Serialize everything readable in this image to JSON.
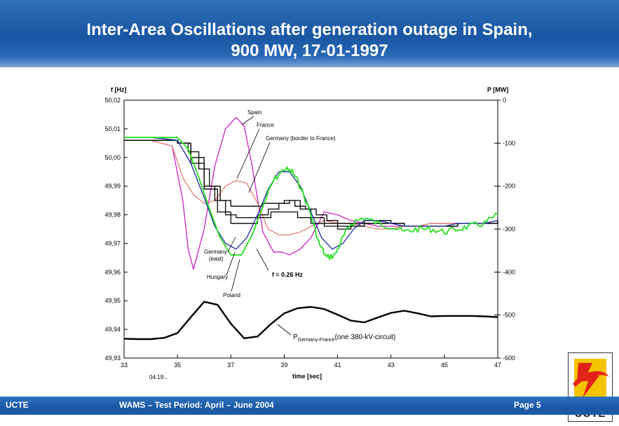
{
  "title_line1": "Inter-Area Oscillations after generation outage in Spain,",
  "title_line2": "900 MW, 17-01-1997",
  "footer": {
    "left": "UCTE",
    "middle": "WAMS – Test Period: April – June 2004",
    "right": "Page 5"
  },
  "logo": {
    "text": "UCTE",
    "icon": "ucte-lightning-logo-icon",
    "colors": {
      "red": "#e2231a",
      "yellow": "#f5c400"
    }
  },
  "chart_data": {
    "type": "line",
    "xlabel": "time [sec]",
    "x_sublabel": "04:19:..",
    "ylabel_left": "f [Hz]",
    "ylabel_right": "P [MW]",
    "xlim": [
      33,
      47
    ],
    "ylim_left": [
      49.93,
      50.02
    ],
    "ylim_right": [
      -600,
      0
    ],
    "x_ticks": [
      "33",
      "35",
      "37",
      "39",
      "41",
      "43",
      "45",
      "47"
    ],
    "y_ticks_left": [
      "50,02",
      "50,01",
      "50,00",
      "49,99",
      "49,98",
      "49,97",
      "49,96",
      "49,95",
      "49,94",
      "49,93"
    ],
    "y_ticks_right": [
      "0",
      "-100",
      "-200",
      "-300",
      "-400",
      "-500",
      "-600"
    ],
    "annotations": {
      "spain": "Spain",
      "france": "France",
      "germany_border": "Germany (border to France)",
      "germany_east_1": "Germany",
      "germany_east_2": "(east)",
      "hungary": "Hungary",
      "poland": "Poland",
      "freq": "f ≈ 0.26 Hz",
      "power_main": "P",
      "power_sub": "Germany-France",
      "power_suffix": "(one 380-kV-circuit)"
    },
    "series": [
      {
        "color": "#d020c8",
        "axis": "left",
        "x": [
          33,
          34,
          34.8,
          35.2,
          35.4,
          35.6,
          36,
          36.4,
          36.8,
          37.2,
          37.5,
          37.8,
          38.2,
          38.6,
          38.9,
          39.2,
          39.6,
          40,
          40.5,
          41,
          41.5,
          42,
          42.5,
          43,
          43.5,
          44,
          44.5,
          45,
          45.5,
          46,
          46.5,
          47
        ],
        "y": [
          50.006,
          50.006,
          50.004,
          49.985,
          49.968,
          49.961,
          49.975,
          49.997,
          50.01,
          50.014,
          50.011,
          49.997,
          49.974,
          49.967,
          49.967,
          49.966,
          49.968,
          49.972,
          49.981,
          49.98,
          49.978,
          49.977,
          49.976,
          49.976,
          49.976,
          49.976,
          49.977,
          49.977,
          49.977,
          49.977,
          49.977,
          49.978
        ]
      },
      {
        "color": "#e08070",
        "axis": "left",
        "x": [
          33,
          34,
          34.8,
          35.2,
          35.6,
          36,
          36.4,
          36.8,
          37.2,
          37.6,
          38,
          38.4,
          38.8,
          39.2,
          39.6,
          40,
          40.5,
          41,
          41.5,
          42,
          42.5,
          43,
          43.5,
          44,
          44.5,
          45,
          45.5,
          46,
          46.5,
          47
        ],
        "y": [
          50.006,
          50.006,
          50.004,
          49.993,
          49.987,
          49.984,
          49.985,
          49.99,
          49.992,
          49.991,
          49.984,
          49.975,
          49.973,
          49.973,
          49.974,
          49.976,
          49.978,
          49.977,
          49.977,
          49.976,
          49.975,
          49.975,
          49.976,
          49.976,
          49.977,
          49.977,
          49.977,
          49.977,
          49.977,
          49.978
        ]
      },
      {
        "color": "#000000",
        "axis": "left",
        "x": [
          33,
          34,
          35,
          35.4,
          35.8,
          36.2,
          36.6,
          37,
          37.4,
          37.8,
          38.2,
          38.6,
          39,
          39.4,
          39.8,
          40.2,
          40.6,
          41,
          41.5,
          42,
          42.5,
          43,
          43.5,
          44,
          44.5,
          45,
          45.5,
          46,
          46.5,
          47
        ],
        "y": [
          50.006,
          50.006,
          50.005,
          50.002,
          49.996,
          49.99,
          49.985,
          49.983,
          49.983,
          49.983,
          49.984,
          49.984,
          49.985,
          49.983,
          49.982,
          49.98,
          49.978,
          49.977,
          49.976,
          49.977,
          49.977,
          49.977,
          49.976,
          49.976,
          49.976,
          49.976,
          49.977,
          49.977,
          49.977,
          49.978
        ]
      },
      {
        "color": "#000000",
        "axis": "left",
        "x": [
          33,
          34,
          35,
          35.5,
          36,
          36.4,
          36.8,
          37.2,
          37.6,
          38,
          38.4,
          38.8,
          39.2,
          39.6,
          40,
          40.5,
          41,
          41.5,
          42,
          42.5,
          43,
          43.5,
          44,
          44.5,
          45,
          45.5,
          46,
          46.5,
          47
        ],
        "y": [
          50.006,
          50.006,
          50.005,
          50.0,
          49.99,
          49.985,
          49.98,
          49.979,
          49.979,
          49.98,
          49.982,
          49.984,
          49.985,
          49.982,
          49.979,
          49.977,
          49.976,
          49.977,
          49.978,
          49.978,
          49.977,
          49.976,
          49.976,
          49.976,
          49.976,
          49.977,
          49.977,
          49.977,
          49.978
        ]
      },
      {
        "color": "#000000",
        "axis": "left",
        "x": [
          33,
          34,
          35,
          35.5,
          36,
          36.5,
          37,
          37.5,
          38,
          38.5,
          39,
          39.5,
          40,
          40.5,
          41,
          41.5,
          42,
          42.5,
          43,
          43.5,
          44,
          44.5,
          45,
          45.5,
          46,
          46.5,
          47
        ],
        "y": [
          50.006,
          50.006,
          50.005,
          49.998,
          49.989,
          49.981,
          49.977,
          49.977,
          49.979,
          49.981,
          49.981,
          49.979,
          49.977,
          49.976,
          49.975,
          49.976,
          49.977,
          49.977,
          49.977,
          49.976,
          49.976,
          49.976,
          49.976,
          49.977,
          49.977,
          49.977,
          49.978
        ]
      },
      {
        "color": "#1c2aa0",
        "axis": "left",
        "x": [
          33,
          34,
          35,
          35.5,
          36,
          36.4,
          36.8,
          37.2,
          37.6,
          38,
          38.4,
          38.8,
          39.2,
          39.6,
          40,
          40.4,
          40.8,
          41.2,
          41.6,
          42,
          42.5,
          43,
          43.5,
          44,
          44.5,
          45,
          45.5,
          46,
          46.5,
          47
        ],
        "y": [
          50.007,
          50.007,
          50.006,
          49.998,
          49.986,
          49.976,
          49.97,
          49.968,
          49.972,
          49.98,
          49.989,
          49.995,
          49.995,
          49.99,
          49.981,
          49.972,
          49.968,
          49.97,
          49.975,
          49.978,
          49.978,
          49.977,
          49.976,
          49.976,
          49.976,
          49.976,
          49.977,
          49.977,
          49.977,
          49.978
        ]
      },
      {
        "color": "#22e01c",
        "axis": "left",
        "x": [
          33,
          34,
          35,
          35.4,
          35.8,
          36.2,
          36.6,
          37,
          37.4,
          37.8,
          38.2,
          38.6,
          39,
          39.3,
          39.6,
          40,
          40.3,
          40.6,
          40.9,
          41.2,
          41.5,
          42,
          42.5,
          43,
          43.5,
          44,
          44.5,
          45,
          45.5,
          46,
          46.5,
          47
        ],
        "y": [
          50.007,
          50.007,
          50.007,
          50.003,
          49.993,
          49.982,
          49.972,
          49.966,
          49.966,
          49.973,
          49.983,
          49.992,
          49.996,
          49.995,
          49.99,
          49.98,
          49.97,
          49.965,
          49.966,
          49.972,
          49.977,
          49.979,
          49.977,
          49.976,
          49.974,
          49.975,
          49.975,
          49.974,
          49.975,
          49.976,
          49.977,
          49.98
        ]
      },
      {
        "color": "#000000",
        "axis": "right",
        "name": "P Germany-France",
        "x": [
          33,
          33.5,
          34,
          34.5,
          35,
          35.5,
          36,
          36.5,
          37,
          37.5,
          38,
          38.5,
          39,
          39.5,
          40,
          40.5,
          41,
          41.5,
          42,
          42.5,
          43,
          43.5,
          44,
          44.5,
          45,
          45.5,
          46,
          46.5,
          47
        ],
        "y": [
          -555,
          -556,
          -556,
          -553,
          -542,
          -505,
          -469,
          -476,
          -520,
          -554,
          -550,
          -521,
          -496,
          -484,
          -481,
          -486,
          -499,
          -513,
          -517,
          -506,
          -495,
          -490,
          -496,
          -503,
          -502,
          -502,
          -502,
          -503,
          -505
        ]
      }
    ]
  }
}
